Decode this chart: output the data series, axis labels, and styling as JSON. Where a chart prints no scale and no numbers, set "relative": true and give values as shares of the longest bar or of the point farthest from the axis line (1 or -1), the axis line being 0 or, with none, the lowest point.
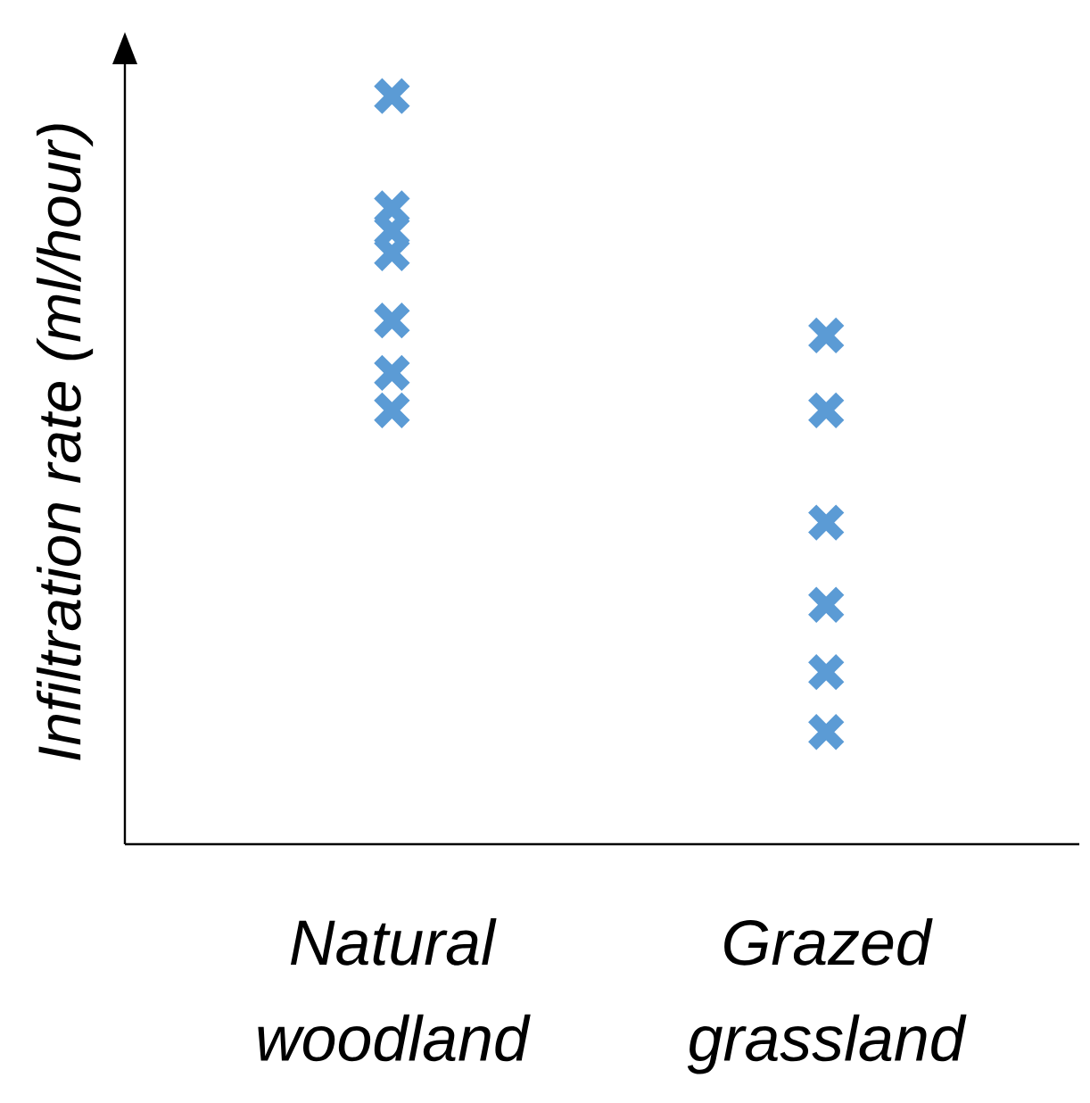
{
  "chart_data": {
    "type": "scatter",
    "ylabel": "Infiltration rate (ml/hour)",
    "categories": [
      "Natural woodland",
      "Grazed grassland"
    ],
    "relative": true,
    "marker": "cross",
    "series": [
      {
        "color": "#5b9bd5",
        "x": [
          "Natural woodland",
          "Natural woodland",
          "Natural woodland",
          "Natural woodland",
          "Natural woodland",
          "Natural woodland",
          "Natural woodland"
        ],
        "values": [
          1.0,
          0.85,
          0.82,
          0.79,
          0.7,
          0.63,
          0.58
        ]
      },
      {
        "color": "#5b9bd5",
        "x": [
          "Grazed grassland",
          "Grazed grassland",
          "Grazed grassland",
          "Grazed grassland",
          "Grazed grassland",
          "Grazed grassland"
        ],
        "values": [
          0.68,
          0.58,
          0.43,
          0.32,
          0.23,
          0.15
        ]
      }
    ]
  }
}
